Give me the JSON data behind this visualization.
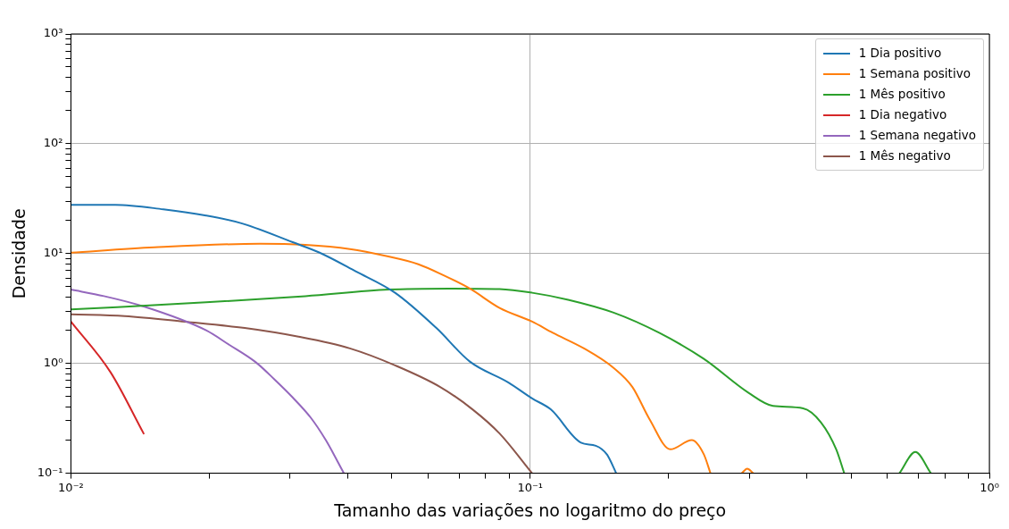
{
  "chart_data": {
    "type": "line",
    "xlabel": "Tamanho das variações no logaritmo do preço",
    "ylabel": "Densidade",
    "log": "xy",
    "grid": true,
    "legend": "top right",
    "line_style": "solid",
    "marker": "none",
    "xlim": [
      0.01,
      1
    ],
    "ylim": [
      0.1,
      1000
    ],
    "xticks": [
      {
        "value": 0.01,
        "label": "10⁻²"
      },
      {
        "value": 0.02,
        "label": null
      },
      {
        "value": 0.03,
        "label": null
      },
      {
        "value": 0.04,
        "label": null
      },
      {
        "value": 0.05,
        "label": null
      },
      {
        "value": 0.06,
        "label": null
      },
      {
        "value": 0.07,
        "label": null
      },
      {
        "value": 0.08,
        "label": null
      },
      {
        "value": 0.09,
        "label": null
      },
      {
        "value": 0.1,
        "label": "10⁻¹"
      },
      {
        "value": 0.2,
        "label": null
      },
      {
        "value": 0.3,
        "label": null
      },
      {
        "value": 0.4,
        "label": null
      },
      {
        "value": 0.5,
        "label": null
      },
      {
        "value": 0.6,
        "label": null
      },
      {
        "value": 0.7,
        "label": null
      },
      {
        "value": 0.8,
        "label": null
      },
      {
        "value": 0.9,
        "label": null
      },
      {
        "value": 1,
        "label": "10⁰"
      }
    ],
    "yticks": [
      {
        "value": 0.1,
        "label": "10⁻¹"
      },
      {
        "value": 0.2,
        "label": null
      },
      {
        "value": 0.3,
        "label": null
      },
      {
        "value": 0.4,
        "label": null
      },
      {
        "value": 0.5,
        "label": null
      },
      {
        "value": 0.6,
        "label": null
      },
      {
        "value": 0.7,
        "label": null
      },
      {
        "value": 0.8,
        "label": null
      },
      {
        "value": 0.9,
        "label": null
      },
      {
        "value": 1,
        "label": "10⁰"
      },
      {
        "value": 2,
        "label": null
      },
      {
        "value": 3,
        "label": null
      },
      {
        "value": 4,
        "label": null
      },
      {
        "value": 5,
        "label": null
      },
      {
        "value": 6,
        "label": null
      },
      {
        "value": 7,
        "label": null
      },
      {
        "value": 8,
        "label": null
      },
      {
        "value": 9,
        "label": null
      },
      {
        "value": 10,
        "label": "10¹"
      },
      {
        "value": 20,
        "label": null
      },
      {
        "value": 30,
        "label": null
      },
      {
        "value": 40,
        "label": null
      },
      {
        "value": 50,
        "label": null
      },
      {
        "value": 60,
        "label": null
      },
      {
        "value": 70,
        "label": null
      },
      {
        "value": 80,
        "label": null
      },
      {
        "value": 90,
        "label": null
      },
      {
        "value": 100,
        "label": "10²"
      },
      {
        "value": 200,
        "label": null
      },
      {
        "value": 300,
        "label": null
      },
      {
        "value": 400,
        "label": null
      },
      {
        "value": 500,
        "label": null
      },
      {
        "value": 600,
        "label": null
      },
      {
        "value": 700,
        "label": null
      },
      {
        "value": 800,
        "label": null
      },
      {
        "value": 900,
        "label": null
      },
      {
        "value": 1000,
        "label": "10³"
      }
    ],
    "series": [
      {
        "name": "1 Dia positivo",
        "color": "#1f77b4",
        "x": [
          0.01,
          0.0125,
          0.0159,
          0.0197,
          0.0236,
          0.0304,
          0.0348,
          0.0417,
          0.0508,
          0.0625,
          0.0739,
          0.0897,
          0.101,
          0.111,
          0.129,
          0.139,
          0.147,
          0.154
        ],
        "values": [
          27.8,
          27.8,
          25.3,
          22.2,
          18.8,
          12.7,
          10.2,
          6.9,
          4.4,
          2.1,
          1.04,
          0.67,
          0.48,
          0.38,
          0.19,
          0.178,
          0.148,
          0.1
        ]
      },
      {
        "name": "1 Semana positivo",
        "color": "#ff7f0e",
        "x": [
          0.01,
          0.0152,
          0.0258,
          0.0324,
          0.0405,
          0.0486,
          0.0571,
          0.0645,
          0.0739,
          0.0858,
          0.101,
          0.112,
          0.131,
          0.152,
          0.167,
          0.182,
          0.202,
          0.225,
          0.239,
          0.247,
          0.27,
          0.289,
          0.297,
          0.306
        ],
        "values": [
          10.2,
          11.4,
          12.3,
          12.0,
          11.0,
          9.5,
          8.0,
          6.4,
          4.8,
          3.2,
          2.4,
          1.9,
          1.37,
          0.91,
          0.61,
          0.31,
          0.165,
          0.2,
          0.148,
          0.1,
          null,
          0.1,
          0.11,
          0.1
        ]
      },
      {
        "name": "1 Mês positivo",
        "color": "#2ca02c",
        "x": [
          0.01,
          0.0197,
          0.0324,
          0.0492,
          0.0666,
          0.0858,
          0.101,
          0.121,
          0.152,
          0.191,
          0.239,
          0.299,
          0.338,
          0.393,
          0.43,
          0.464,
          0.483,
          0.56,
          0.637,
          0.69,
          0.746
        ],
        "values": [
          3.1,
          3.6,
          4.1,
          4.7,
          4.8,
          4.75,
          4.4,
          3.8,
          2.9,
          1.9,
          1.1,
          0.54,
          0.41,
          0.39,
          0.29,
          0.165,
          0.1,
          null,
          0.1,
          0.156,
          0.1
        ]
      },
      {
        "name": "1 Dia negativo",
        "color": "#d62728",
        "x": [
          0.01,
          0.0122,
          0.0144
        ],
        "values": [
          2.4,
          0.83,
          0.23
        ]
      },
      {
        "name": "1 Semana negativo",
        "color": "#9467bd",
        "x": [
          0.01,
          0.0118,
          0.0144,
          0.0197,
          0.0221,
          0.0253,
          0.0277,
          0.0304,
          0.0333,
          0.0359,
          0.0393
        ],
        "values": [
          4.7,
          4.1,
          3.3,
          2.0,
          1.48,
          1.02,
          0.72,
          0.49,
          0.32,
          0.2,
          0.1
        ]
      },
      {
        "name": "1 Mês negativo",
        "color": "#8c564b",
        "x": [
          0.01,
          0.0131,
          0.0177,
          0.0239,
          0.0313,
          0.0405,
          0.0508,
          0.0637,
          0.075,
          0.0858,
          0.101
        ],
        "values": [
          2.8,
          2.7,
          2.4,
          2.1,
          1.75,
          1.37,
          0.96,
          0.61,
          0.38,
          0.23,
          0.1
        ]
      }
    ]
  }
}
